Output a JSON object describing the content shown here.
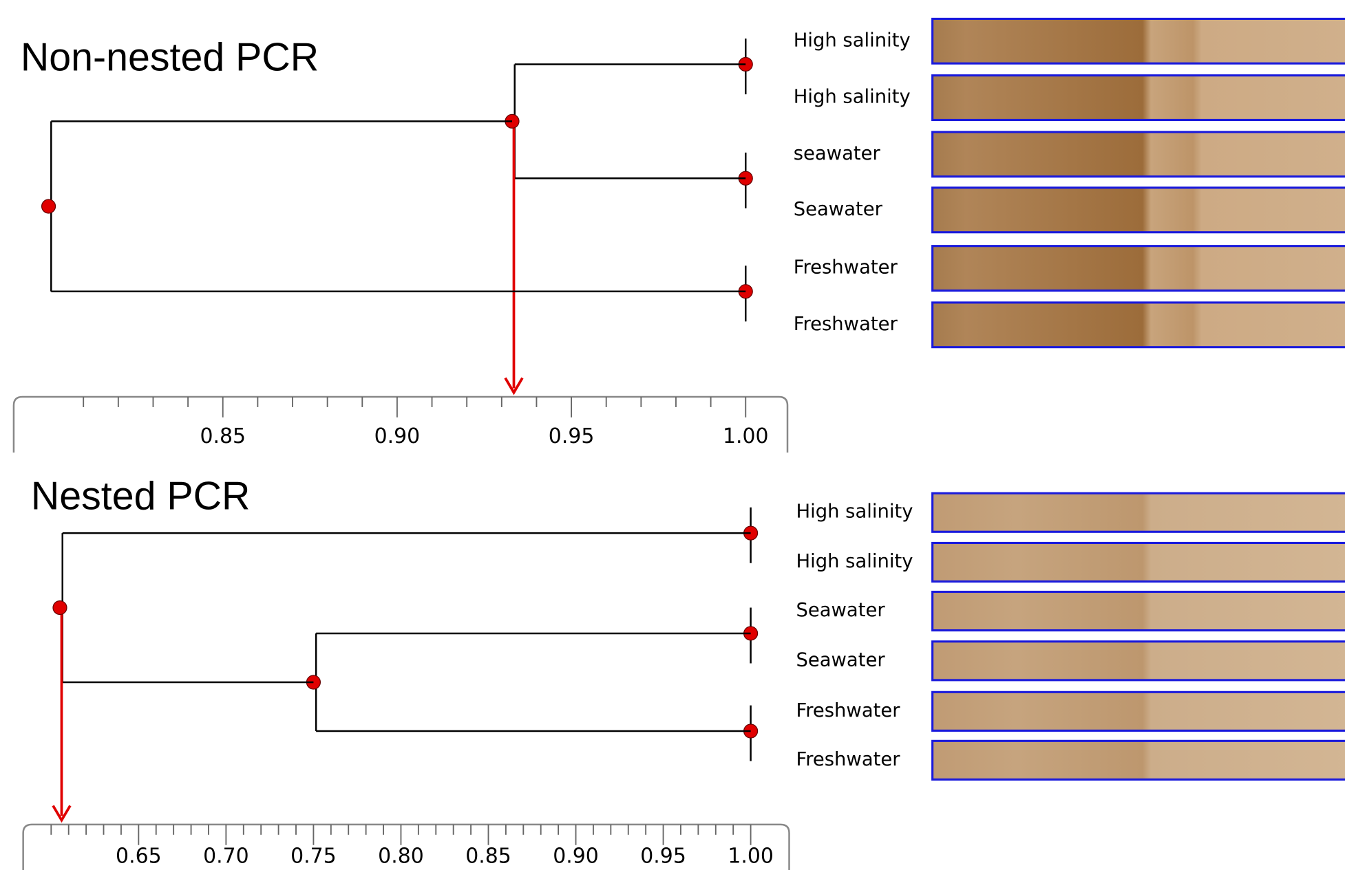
{
  "chart_data": [
    {
      "type": "dendrogram",
      "title": "Non-nested PCR",
      "xlim": [
        0.79,
        1.012
      ],
      "xticks": [
        0.85,
        {
          "value": 0.9,
          "label": "0.90"
        },
        0.95,
        {
          "value": 1,
          "label": "1.00"
        }
      ],
      "xticks_minor": [
        0.81,
        0.82,
        0.83,
        0.84,
        0.86,
        0.87,
        0.88,
        0.89,
        0.91,
        0.92,
        0.93,
        0.94,
        0.96,
        0.97,
        0.98,
        0.99
      ],
      "color": "#e00000",
      "tree": {
        "value": 0.8,
        "children": [
          {
            "value": 0.933,
            "highlight": true,
            "children": [
              {
                "value": 1
              },
              {
                "value": 1
              }
            ]
          },
          {
            "value": 1
          }
        ]
      },
      "lanes": [
        "High salinity",
        "High salinity",
        "seawater",
        "Seawater",
        "Freshwater",
        "Freshwater"
      ]
    },
    {
      "type": "dendrogram",
      "title": "Nested PCR",
      "xlim": [
        0.584,
        1.022
      ],
      "xticks": [
        0.65,
        {
          "value": 0.7,
          "label": "0.70"
        },
        0.75,
        {
          "value": 0.8,
          "label": "0.80"
        },
        0.85,
        {
          "value": 0.9,
          "label": "0.90"
        },
        0.95,
        {
          "value": 1,
          "label": "1.00"
        }
      ],
      "xticks_minor": [
        0.6,
        0.61,
        0.62,
        0.63,
        0.64,
        0.66,
        0.67,
        0.68,
        0.69,
        0.71,
        0.72,
        0.73,
        0.74,
        0.76,
        0.77,
        0.78,
        0.79,
        0.81,
        0.82,
        0.83,
        0.84,
        0.86,
        0.87,
        0.88,
        0.89,
        0.91,
        0.92,
        0.93,
        0.94,
        0.96,
        0.97,
        0.98,
        0.99
      ],
      "color": "#e00000",
      "tree": {
        "value": 0.605,
        "highlight": true,
        "children": [
          {
            "value": 1
          },
          {
            "value": 0.75,
            "children": [
              {
                "value": 1
              },
              {
                "value": 1
              }
            ]
          }
        ]
      },
      "lanes": [
        "High salinity",
        "High salinity",
        "Seawater",
        "Seawater",
        "Freshwater",
        "Freshwater"
      ]
    }
  ]
}
